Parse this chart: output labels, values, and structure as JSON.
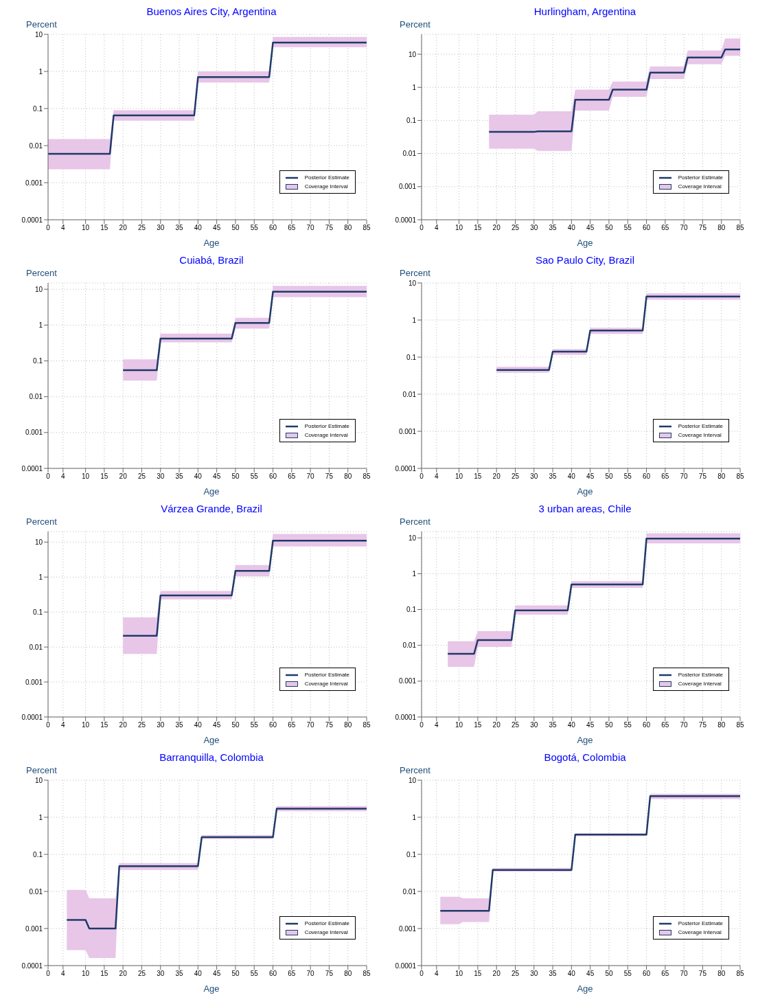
{
  "chart_data": [
    {
      "type": "line",
      "title": "Buenos Aires City, Argentina",
      "xlabel": "Age",
      "ylabel": "Percent",
      "annotations": [
        "Coverage Interval"
      ],
      "log": true,
      "grid": true,
      "legend": "bottom right",
      "xlim": [
        0,
        85
      ],
      "xticks": [
        0,
        4,
        10,
        15,
        20,
        25,
        30,
        35,
        40,
        45,
        50,
        55,
        60,
        65,
        70,
        75,
        80,
        85
      ],
      "ylim": [
        0.0001,
        10
      ],
      "yticks": [
        0.0001,
        0.001,
        0.01,
        0.1,
        1,
        10
      ],
      "series": [
        {
          "name": "Posterior Estimate",
          "color": "#1f3a68",
          "x": [
            0,
            16.5,
            17.5,
            39,
            40,
            59,
            60,
            85
          ],
          "values": [
            0.006,
            0.006,
            0.065,
            0.065,
            0.7,
            0.7,
            6,
            6
          ],
          "lower": [
            0.0023,
            0.0023,
            0.047,
            0.047,
            0.5,
            0.5,
            4.5,
            4.5
          ],
          "upper": [
            0.015,
            0.015,
            0.09,
            0.09,
            1,
            1,
            8.5,
            8.5
          ]
        }
      ]
    },
    {
      "type": "line",
      "title": "Hurlingham, Argentina",
      "xlabel": "Age",
      "ylabel": "Percent",
      "annotations": [
        "Coverage Interval"
      ],
      "log": true,
      "grid": true,
      "legend": "bottom right",
      "xlim": [
        0,
        85
      ],
      "xticks": [
        0,
        4,
        10,
        15,
        20,
        25,
        30,
        35,
        40,
        45,
        50,
        55,
        60,
        65,
        70,
        75,
        80,
        85
      ],
      "ylim": [
        0.0001,
        40
      ],
      "yticks": [
        0.0001,
        0.001,
        0.01,
        0.1,
        1,
        10
      ],
      "series": [
        {
          "name": "Posterior Estimate",
          "color": "#1f3a68",
          "x": [
            18,
            30,
            31,
            40,
            41,
            50,
            51,
            60,
            61,
            70,
            71,
            80,
            81,
            85
          ],
          "values": [
            0.045,
            0.045,
            0.047,
            0.047,
            0.42,
            0.42,
            0.85,
            0.85,
            2.8,
            2.8,
            8,
            8,
            14,
            14
          ],
          "lower": [
            0.014,
            0.014,
            0.012,
            0.012,
            0.2,
            0.2,
            0.52,
            0.52,
            1.8,
            1.8,
            5,
            5,
            9,
            9
          ],
          "upper": [
            0.15,
            0.15,
            0.19,
            0.19,
            0.85,
            0.85,
            1.5,
            1.5,
            4.3,
            4.3,
            13,
            13,
            30,
            30
          ]
        }
      ]
    },
    {
      "type": "line",
      "title": "Cuiabá, Brazil",
      "xlabel": "Age",
      "ylabel": "Percent",
      "annotations": [
        "Coverage Interval"
      ],
      "log": true,
      "grid": true,
      "legend": "bottom right",
      "xlim": [
        0,
        85
      ],
      "xticks": [
        0,
        4,
        10,
        15,
        20,
        25,
        30,
        35,
        40,
        45,
        50,
        55,
        60,
        65,
        70,
        75,
        80,
        85
      ],
      "ylim": [
        0.0001,
        15
      ],
      "yticks": [
        0.0001,
        0.001,
        0.01,
        0.1,
        1,
        10
      ],
      "series": [
        {
          "name": "Posterior Estimate",
          "color": "#1f3a68",
          "x": [
            20,
            29,
            30,
            49,
            50,
            59,
            60,
            85
          ],
          "values": [
            0.055,
            0.055,
            0.42,
            0.42,
            1.15,
            1.15,
            8.5,
            8.5
          ],
          "lower": [
            0.028,
            0.028,
            0.33,
            0.33,
            0.8,
            0.8,
            6,
            6
          ],
          "upper": [
            0.11,
            0.11,
            0.58,
            0.58,
            1.6,
            1.6,
            12.5,
            12.5
          ]
        }
      ]
    },
    {
      "type": "line",
      "title": "Sao Paulo City, Brazil",
      "xlabel": "Age",
      "ylabel": "Percent",
      "annotations": [
        "Coverage Interval"
      ],
      "log": true,
      "grid": true,
      "legend": "bottom right",
      "xlim": [
        0,
        85
      ],
      "xticks": [
        0,
        4,
        10,
        15,
        20,
        25,
        30,
        35,
        40,
        45,
        50,
        55,
        60,
        65,
        70,
        75,
        80,
        85
      ],
      "ylim": [
        0.0001,
        10
      ],
      "yticks": [
        0.0001,
        0.001,
        0.01,
        0.1,
        1,
        10
      ],
      "series": [
        {
          "name": "Posterior Estimate",
          "color": "#1f3a68",
          "x": [
            20,
            34,
            35,
            44,
            45,
            59,
            60,
            85
          ],
          "values": [
            0.045,
            0.045,
            0.14,
            0.14,
            0.52,
            0.52,
            4.3,
            4.3
          ],
          "lower": [
            0.038,
            0.038,
            0.115,
            0.115,
            0.42,
            0.42,
            3.5,
            3.5
          ],
          "upper": [
            0.055,
            0.055,
            0.165,
            0.165,
            0.62,
            0.62,
            5.3,
            5.3
          ]
        }
      ]
    },
    {
      "type": "line",
      "title": "Várzea Grande, Brazil",
      "xlabel": "Age",
      "ylabel": "Percent",
      "annotations": [
        "Coverage Interval"
      ],
      "log": true,
      "grid": true,
      "legend": "bottom right",
      "xlim": [
        0,
        85
      ],
      "xticks": [
        0,
        4,
        10,
        15,
        20,
        25,
        30,
        35,
        40,
        45,
        50,
        55,
        60,
        65,
        70,
        75,
        80,
        85
      ],
      "ylim": [
        0.0001,
        20
      ],
      "yticks": [
        0.0001,
        0.001,
        0.01,
        0.1,
        1,
        10
      ],
      "series": [
        {
          "name": "Posterior Estimate",
          "color": "#1f3a68",
          "x": [
            20,
            29,
            30,
            49,
            50,
            59,
            60,
            85
          ],
          "values": [
            0.021,
            0.021,
            0.3,
            0.3,
            1.5,
            1.5,
            11,
            11
          ],
          "lower": [
            0.0063,
            0.0063,
            0.23,
            0.23,
            1.05,
            1.05,
            7.5,
            7.5
          ],
          "upper": [
            0.07,
            0.07,
            0.4,
            0.4,
            2.2,
            2.2,
            17,
            17
          ]
        }
      ]
    },
    {
      "type": "line",
      "title": "3 urban areas, Chile",
      "xlabel": "Age",
      "ylabel": "Percent",
      "annotations": [
        "Coverage Interval"
      ],
      "log": true,
      "grid": true,
      "legend": "bottom right",
      "xlim": [
        0,
        85
      ],
      "xticks": [
        0,
        4,
        10,
        15,
        20,
        25,
        30,
        35,
        40,
        45,
        50,
        55,
        60,
        65,
        70,
        75,
        80,
        85
      ],
      "ylim": [
        0.0001,
        15
      ],
      "yticks": [
        0.0001,
        0.001,
        0.01,
        0.1,
        1,
        10
      ],
      "series": [
        {
          "name": "Posterior Estimate",
          "color": "#1f3a68",
          "x": [
            7,
            14,
            15,
            24,
            25,
            39,
            40,
            59,
            60,
            85
          ],
          "values": [
            0.0058,
            0.0058,
            0.014,
            0.014,
            0.095,
            0.095,
            0.5,
            0.5,
            9.5,
            9.5
          ],
          "lower": [
            0.0025,
            0.0025,
            0.009,
            0.009,
            0.072,
            0.072,
            0.4,
            0.4,
            7,
            7
          ],
          "upper": [
            0.013,
            0.013,
            0.025,
            0.025,
            0.13,
            0.13,
            0.62,
            0.62,
            13.5,
            13.5
          ]
        }
      ]
    },
    {
      "type": "line",
      "title": "Barranquilla, Colombia",
      "xlabel": "Age",
      "ylabel": "Percent",
      "annotations": [
        "Coverage Interval"
      ],
      "log": true,
      "grid": true,
      "legend": "bottom right",
      "xlim": [
        0,
        85
      ],
      "xticks": [
        0,
        4,
        10,
        15,
        20,
        25,
        30,
        35,
        40,
        45,
        50,
        55,
        60,
        65,
        70,
        75,
        80,
        85
      ],
      "ylim": [
        0.0001,
        10
      ],
      "yticks": [
        0.0001,
        0.001,
        0.01,
        0.1,
        1,
        10
      ],
      "series": [
        {
          "name": "Posterior Estimate",
          "color": "#1f3a68",
          "x": [
            5,
            10,
            11,
            18,
            19,
            40,
            41,
            60,
            61,
            85
          ],
          "values": [
            0.0017,
            0.0017,
            0.001,
            0.001,
            0.048,
            0.048,
            0.29,
            0.29,
            1.7,
            1.7
          ],
          "lower": [
            0.00026,
            0.00026,
            0.00016,
            0.00016,
            0.038,
            0.038,
            0.26,
            0.26,
            1.45,
            1.45
          ],
          "upper": [
            0.011,
            0.011,
            0.0065,
            0.0065,
            0.058,
            0.058,
            0.33,
            0.33,
            2,
            2
          ]
        }
      ]
    },
    {
      "type": "line",
      "title": "Bogotá, Colombia",
      "xlabel": "Age",
      "ylabel": "Percent",
      "annotations": [
        "Coverage Interval"
      ],
      "log": true,
      "grid": true,
      "legend": "bottom right",
      "xlim": [
        0,
        85
      ],
      "xticks": [
        0,
        4,
        10,
        15,
        20,
        25,
        30,
        35,
        40,
        45,
        50,
        55,
        60,
        65,
        70,
        75,
        80,
        85
      ],
      "ylim": [
        0.0001,
        10
      ],
      "yticks": [
        0.0001,
        0.001,
        0.01,
        0.1,
        1,
        10
      ],
      "series": [
        {
          "name": "Posterior Estimate",
          "color": "#1f3a68",
          "x": [
            5,
            10,
            11,
            18,
            19,
            40,
            41,
            60,
            61,
            85
          ],
          "values": [
            0.003,
            0.003,
            0.003,
            0.003,
            0.038,
            0.038,
            0.34,
            0.34,
            3.7,
            3.7
          ],
          "lower": [
            0.0013,
            0.0013,
            0.0015,
            0.0015,
            0.034,
            0.034,
            0.31,
            0.31,
            3.1,
            3.1
          ],
          "upper": [
            0.0072,
            0.0072,
            0.0065,
            0.0065,
            0.043,
            0.043,
            0.37,
            0.37,
            4.3,
            4.3
          ]
        }
      ]
    }
  ]
}
